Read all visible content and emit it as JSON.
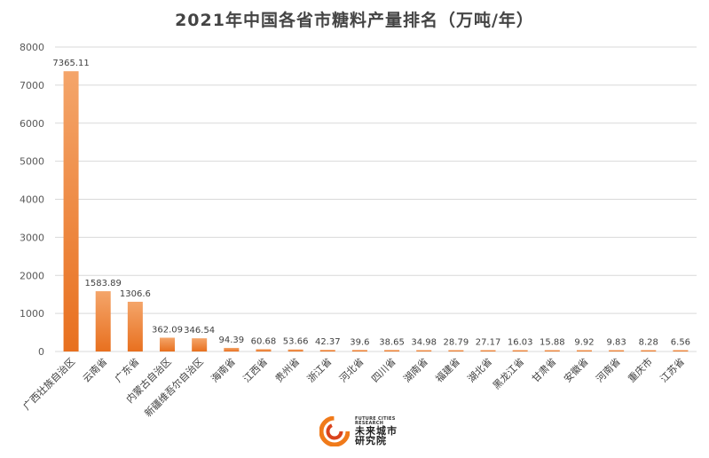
{
  "chart_data": {
    "type": "bar",
    "title": "2021年中国各省市糖料产量排名（万吨/年）",
    "categories": [
      "广西壮族自治区",
      "云南省",
      "广东省",
      "内蒙古自治区",
      "新疆维吾尔自治区",
      "海南省",
      "江西省",
      "贵州省",
      "浙江省",
      "河北省",
      "四川省",
      "湖南省",
      "福建省",
      "湖北省",
      "黑龙江省",
      "甘肃省",
      "安徽省",
      "河南省",
      "重庆市",
      "江苏省"
    ],
    "values": [
      7365.11,
      1583.89,
      1306.6,
      362.09,
      346.54,
      94.39,
      60.68,
      53.66,
      42.37,
      39.6,
      38.65,
      34.98,
      28.79,
      27.17,
      16.03,
      15.88,
      9.92,
      9.83,
      8.28,
      6.56
    ],
    "data_labels": [
      "7365.11",
      "1583.89",
      "1306.6",
      "362.09",
      "346.54",
      "94.39",
      "60.68",
      "53.66",
      "42.37",
      "39.6",
      "38.65",
      "34.98",
      "28.79",
      "27.17",
      "16.03",
      "15.88",
      "9.92",
      "9.83",
      "8.28",
      "6.56"
    ],
    "xlabel": "",
    "ylabel": "",
    "ylim": [
      0,
      8000
    ],
    "yticks": [
      0,
      1000,
      2000,
      3000,
      4000,
      5000,
      6000,
      7000,
      8000
    ],
    "grid": true,
    "legend": "none",
    "colors": {
      "bar_top": "#f4a56a",
      "bar_bottom": "#e8701f",
      "grid": "#d9d9d9"
    }
  },
  "logo": {
    "en_line1": "FUTURE CITIES",
    "en_line2": "RESEARCH",
    "cn_line1": "未来城市",
    "cn_line2": "研究院",
    "colors": {
      "outer": "#f07a1a",
      "inner": "#d9431c"
    }
  }
}
